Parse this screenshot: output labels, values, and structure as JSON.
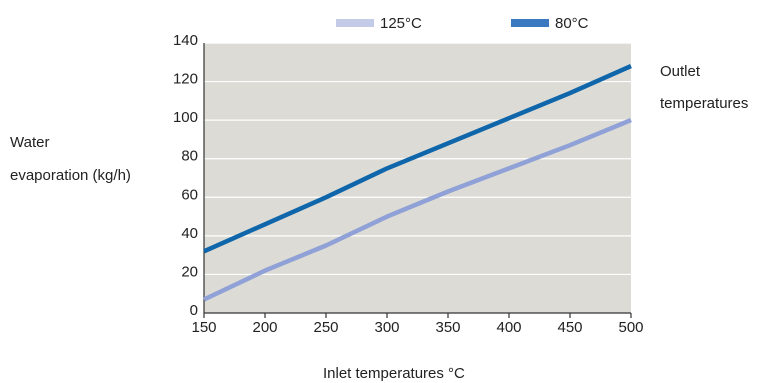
{
  "chart_data": {
    "type": "line",
    "title": "",
    "xlabel": "Inlet temperatures °C",
    "ylabel_lines": [
      "Water",
      "evaporation (kg/h)"
    ],
    "right_label_lines": [
      "Outlet",
      "temperatures"
    ],
    "xlim": [
      150,
      500
    ],
    "ylim": [
      0,
      140
    ],
    "x_ticks": [
      150,
      200,
      250,
      300,
      350,
      400,
      450,
      500
    ],
    "y_ticks": [
      0,
      20,
      40,
      60,
      80,
      100,
      120,
      140
    ],
    "grid": true,
    "legend_position": "top",
    "series": [
      {
        "name": "125°C",
        "color": "#8fa1d6",
        "swatch_color": "#c3cbe9",
        "x": [
          150,
          200,
          250,
          300,
          350,
          400,
          450,
          500
        ],
        "y": [
          7,
          22,
          35,
          50,
          63,
          75,
          87,
          100
        ]
      },
      {
        "name": "80°C",
        "color": "#0f66aa",
        "swatch_color": "#3a78c0",
        "x": [
          150,
          200,
          250,
          300,
          350,
          400,
          450,
          500
        ],
        "y": [
          32,
          46,
          60,
          75,
          88,
          101,
          114,
          128
        ]
      }
    ]
  }
}
